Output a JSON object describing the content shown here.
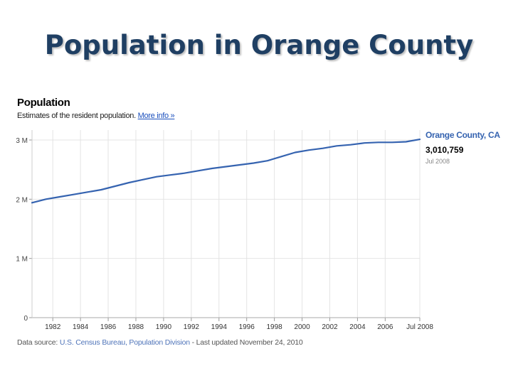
{
  "slide": {
    "title": "Population in Orange County"
  },
  "chart_header": {
    "heading": "Population",
    "subtitle": "Estimates of the resident population.",
    "more_link": "More info »"
  },
  "legend": {
    "series_name": "Orange County, CA",
    "latest_value": "3,010,759",
    "latest_date": "Jul 2008"
  },
  "footer": {
    "prefix": "Data source:",
    "source": "U.S. Census Bureau, Population Division",
    "updated": "- Last updated November 24, 2010"
  },
  "colors": {
    "line": "#3563b0",
    "grid": "#e4e4e4",
    "title": "#1f3f63"
  },
  "chart_data": {
    "type": "line",
    "title": "Population",
    "subtitle": "Estimates of the resident population.",
    "xlabel": "",
    "ylabel": "",
    "xlim": [
      1980.5,
      2008.5
    ],
    "ylim": [
      0,
      3000000
    ],
    "grid": true,
    "legend_position": "right",
    "y_ticks": [
      {
        "value": 0,
        "label": "0"
      },
      {
        "value": 1000000,
        "label": "1 M"
      },
      {
        "value": 2000000,
        "label": "2 M"
      },
      {
        "value": 3000000,
        "label": "3 M"
      }
    ],
    "x_ticks": [
      {
        "value": 1982,
        "label": "1982"
      },
      {
        "value": 1984,
        "label": "1984"
      },
      {
        "value": 1986,
        "label": "1986"
      },
      {
        "value": 1988,
        "label": "1988"
      },
      {
        "value": 1990,
        "label": "1990"
      },
      {
        "value": 1992,
        "label": "1992"
      },
      {
        "value": 1994,
        "label": "1994"
      },
      {
        "value": 1996,
        "label": "1996"
      },
      {
        "value": 1998,
        "label": "1998"
      },
      {
        "value": 2000,
        "label": "2000"
      },
      {
        "value": 2002,
        "label": "2002"
      },
      {
        "value": 2004,
        "label": "2004"
      },
      {
        "value": 2006,
        "label": "2006"
      },
      {
        "value": 2008.5,
        "label": "Jul 2008"
      }
    ],
    "series": [
      {
        "name": "Orange County, CA",
        "x": [
          1980.5,
          1981.5,
          1982.5,
          1983.5,
          1984.5,
          1985.5,
          1986.5,
          1987.5,
          1988.5,
          1989.5,
          1990.5,
          1991.5,
          1992.5,
          1993.5,
          1994.5,
          1995.5,
          1996.5,
          1997.5,
          1998.5,
          1999.5,
          2000.5,
          2001.5,
          2002.5,
          2003.5,
          2004.5,
          2005.5,
          2006.5,
          2007.5,
          2008.5
        ],
        "values": [
          1940000,
          2000000,
          2040000,
          2080000,
          2120000,
          2160000,
          2220000,
          2280000,
          2330000,
          2380000,
          2410000,
          2440000,
          2480000,
          2520000,
          2550000,
          2580000,
          2610000,
          2650000,
          2720000,
          2790000,
          2830000,
          2860000,
          2900000,
          2920000,
          2950000,
          2960000,
          2960000,
          2970000,
          3010759
        ]
      }
    ]
  }
}
